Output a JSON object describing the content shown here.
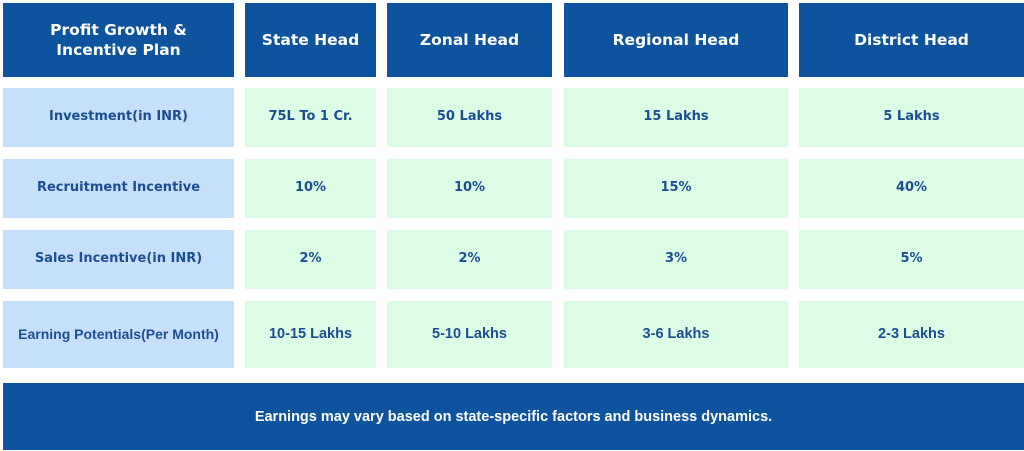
{
  "table": {
    "headers": [
      "Profit Growth & Incentive Plan",
      "State Head",
      "Zonal Head",
      "Regional Head",
      "District Head"
    ],
    "rows": [
      {
        "label": "Investment(in INR)",
        "values": [
          "75L To 1 Cr.",
          "50 Lakhs",
          "15 Lakhs",
          "5 Lakhs"
        ]
      },
      {
        "label": "Recruitment Incentive",
        "values": [
          "10%",
          "10%",
          "15%",
          "40%"
        ]
      },
      {
        "label": "Sales Incentive(in INR)",
        "values": [
          "2%",
          "2%",
          "3%",
          "5%"
        ]
      },
      {
        "label": "Earning Potentials(Per Month)",
        "values": [
          "10-15 Lakhs",
          "5-10 Lakhs",
          "3-6 Lakhs",
          "2-3 Lakhs"
        ]
      }
    ]
  },
  "footer": {
    "note": "Earnings may vary based on state-specific factors and business dynamics."
  },
  "colors": {
    "header_bg": "#0d539d",
    "label_bg": "#c6dffb",
    "value_bg": "#dcfce6",
    "text_blue": "#1b4f91"
  }
}
